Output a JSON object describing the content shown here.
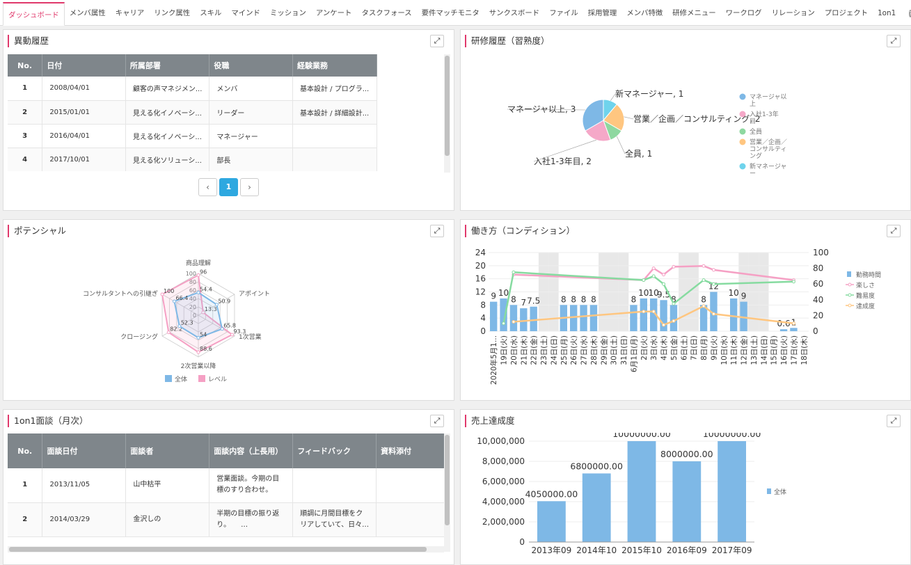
{
  "tabs": [
    "ダッシュボード",
    "メンバ属性",
    "キャリア",
    "リンク属性",
    "スキル",
    "マインド",
    "ミッション",
    "アンケート",
    "タスクフォース",
    "要件マッチモニタ",
    "サンクスボード",
    "ファイル",
    "採用管理",
    "メンバ特徴",
    "研修メニュー",
    "ワークログ",
    "リレーション",
    "プロジェクト",
    "1on1"
  ],
  "help_label": "?",
  "transfer": {
    "title": "異動履歴",
    "headers": [
      "No.",
      "日付",
      "所属部署",
      "役職",
      "経験業務"
    ],
    "rows": [
      [
        "1",
        "2008/04/01",
        "顧客の声マネジメン...",
        "メンバ",
        "基本設計 / プログラ..."
      ],
      [
        "2",
        "2015/01/01",
        "見える化イノベーシ...",
        "リーダー",
        "基本設計 / 詳細設計..."
      ],
      [
        "3",
        "2016/04/01",
        "見える化イノベーシ...",
        "マネージャー",
        ""
      ],
      [
        "4",
        "2017/10/01",
        "見える化ソリューシ...",
        "部長",
        ""
      ]
    ],
    "page": "1"
  },
  "training": {
    "title": "研修履歴（習熟度）",
    "chart_data": {
      "type": "pie",
      "labels": [
        "新マネージャー",
        "営業／企画／コンサルティング",
        "全員",
        "入社1-3年目",
        "マネージャ以上"
      ],
      "values": [
        1,
        2,
        1,
        2,
        3
      ],
      "colors": [
        "#6fd3ec",
        "#ffc680",
        "#8ed8a0",
        "#f5a8c8",
        "#7eb8e6"
      ],
      "data_labels": [
        "新マネージャー, 1",
        "営業／企画／コンサルティング, 2",
        "全員, 1",
        "入社1-3年目, 2",
        "マネージャ以上, 3"
      ],
      "legend": [
        "マネージャ以上",
        "入社1-3年目",
        "全員",
        "営業／企画／コンサルティング",
        "新マネージャー"
      ],
      "legend_colors": [
        "#7eb8e6",
        "#f5a8c8",
        "#8ed8a0",
        "#ffc680",
        "#6fd3ec"
      ]
    }
  },
  "potential": {
    "title": "ポテンシャル",
    "chart_data": {
      "type": "radar",
      "axes": [
        "商品理解",
        "アポイント",
        "1次営業",
        "2次営業以降",
        "クロージング",
        "コンサルタントへの引継ぎ"
      ],
      "ticks": [
        "0",
        "20",
        "40",
        "60",
        "80",
        "100"
      ],
      "series": [
        {
          "name": "全体",
          "values": [
            54.4,
            50.9,
            65.8,
            54,
            52.3,
            66.4
          ],
          "color": "#7eb8e6",
          "value_labels": [
            "54.4",
            "50.9",
            "65.8",
            "54",
            "52.3",
            "66.4"
          ]
        },
        {
          "name": "レベル",
          "values": [
            96,
            13.3,
            93.3,
            88.6,
            82.2,
            100
          ],
          "color": "#f5a0c4",
          "value_labels": [
            "96",
            "13.3",
            "93.3",
            "88.6",
            "82.2",
            "100"
          ]
        }
      ]
    }
  },
  "workstyle": {
    "title": "働き方（コンディション）",
    "chart_data": {
      "type": "bar+line",
      "x": [
        "2020年5月1...",
        "19日(火)",
        "20日(水)",
        "21日(木)",
        "22日(金)",
        "23日(土)",
        "24日(日)",
        "25日(月)",
        "26日(火)",
        "27日(水)",
        "28日(木)",
        "29日(金)",
        "30日(土)",
        "31日(日)",
        "6月1日(月)",
        "2日(火)",
        "3日(水)",
        "4日(木)",
        "5日(金)",
        "6日(土)",
        "7日(日)",
        "8日(月)",
        "9日(火)",
        "10日(水)",
        "11日(木)",
        "12日(金)",
        "13日(土)",
        "14日(日)",
        "15日(月)",
        "16日(火)",
        "17日(水)",
        "18日(木)"
      ],
      "shaded": [
        5,
        6,
        11,
        12,
        13,
        19,
        20,
        25,
        26,
        27
      ],
      "y_left": {
        "ticks": [
          "0",
          "4",
          "8",
          "12",
          "16",
          "20",
          "24"
        ],
        "max": 24
      },
      "y_right": {
        "ticks": [
          "0",
          "20",
          "40",
          "60",
          "80",
          "100"
        ],
        "max": 100
      },
      "series": [
        {
          "name": "勤務時間",
          "type": "bar",
          "color": "#7eb8e6",
          "values": [
            9,
            10,
            8,
            7,
            7.5,
            null,
            null,
            8,
            8,
            8,
            8,
            null,
            null,
            null,
            8,
            10,
            10,
            9.5,
            8,
            null,
            null,
            8,
            12,
            null,
            10,
            9,
            null,
            null,
            null,
            0.6,
            1,
            null
          ],
          "labels": [
            "9",
            "10",
            "8",
            "7",
            "7.5",
            "",
            "",
            "8",
            "8",
            "8",
            "8",
            "",
            "",
            "",
            "8",
            "10",
            "10",
            "9.5",
            "8",
            "",
            "",
            "8",
            "12",
            "",
            "10",
            "9",
            "",
            "",
            "",
            "0.6",
            "1",
            ""
          ]
        },
        {
          "name": "楽しさ",
          "type": "line",
          "color": "#f5a0c4",
          "values": [
            null,
            null,
            72,
            null,
            null,
            null,
            null,
            null,
            null,
            null,
            null,
            null,
            null,
            null,
            null,
            65,
            80,
            72,
            82,
            null,
            null,
            83,
            78,
            null,
            null,
            null,
            null,
            null,
            null,
            null,
            65,
            null
          ]
        },
        {
          "name": "難易度",
          "type": "line",
          "color": "#86dba0",
          "values": [
            null,
            10,
            75,
            null,
            null,
            null,
            null,
            null,
            null,
            null,
            null,
            null,
            null,
            null,
            null,
            65,
            70,
            60,
            35,
            null,
            null,
            65,
            60,
            null,
            null,
            null,
            null,
            null,
            null,
            null,
            63,
            null
          ]
        },
        {
          "name": "達成度",
          "type": "line",
          "color": "#ffc680",
          "values": [
            null,
            null,
            12,
            null,
            null,
            null,
            null,
            null,
            null,
            null,
            null,
            null,
            null,
            null,
            null,
            25,
            25,
            8,
            13,
            null,
            null,
            32,
            22,
            null,
            null,
            null,
            null,
            null,
            null,
            null,
            10,
            null
          ]
        }
      ]
    }
  },
  "oneonone": {
    "title": "1on1面談（月次）",
    "headers": [
      "No.",
      "面談日付",
      "面談者",
      "面談内容（上長用）",
      "フィードバック",
      "資料添付"
    ],
    "rows": [
      [
        "1",
        "2013/11/05",
        "山中枯平",
        "営業面談。今期の目標のすり合わせ。",
        "",
        ""
      ],
      [
        "2",
        "2014/03/29",
        "金沢しの",
        "半期の目標の振り返り。　　…",
        "順調に月間目標をクリアしていて、日々…",
        ""
      ]
    ]
  },
  "sales": {
    "title": "売上達成度",
    "chart_data": {
      "type": "bar",
      "categories": [
        "2013年09",
        "2014年10",
        "2015年10",
        "2016年09",
        "2017年09"
      ],
      "values": [
        4050000,
        6800000,
        10000000,
        8000000,
        10000000
      ],
      "data_labels": [
        "4050000.00",
        "6800000.00",
        "10000000.00",
        "8000000.00",
        "10000000.00"
      ],
      "y_ticks": [
        "0",
        "2,000,000",
        "4,000,000",
        "6,000,000",
        "8,000,000",
        "10,000,000"
      ],
      "ymax": 10000000,
      "series_name": "全体",
      "color": "#7eb8e6"
    }
  }
}
